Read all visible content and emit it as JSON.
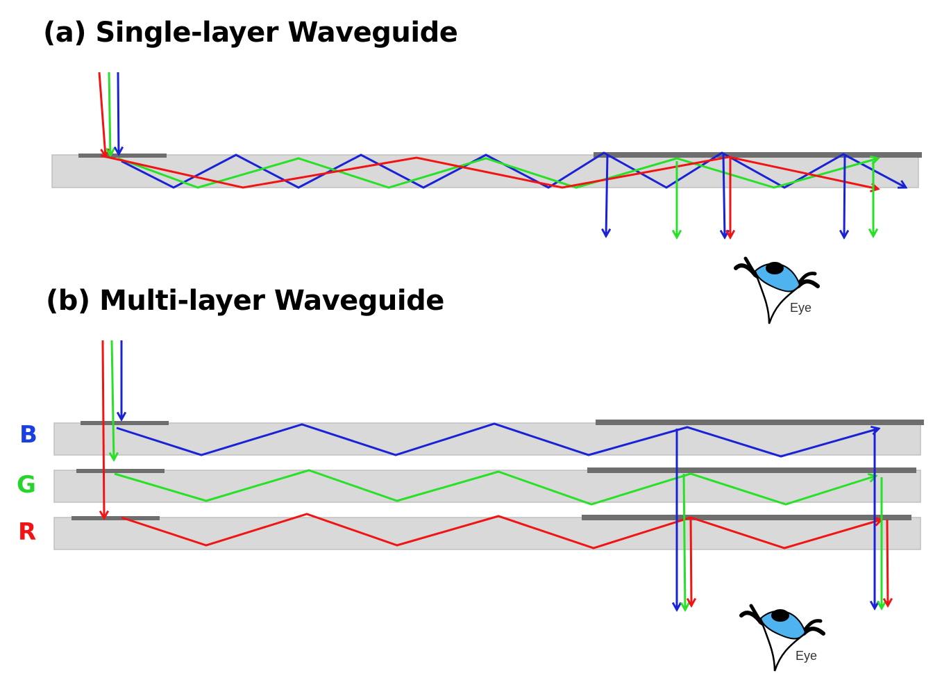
{
  "panel_a": {
    "title": "(a) Single-layer Waveguide",
    "eye_label": "Eye"
  },
  "panel_b": {
    "title": "(b) Multi-layer Waveguide",
    "eye_label": "Eye",
    "layers": [
      {
        "label": "B",
        "color": "#1a3fe0"
      },
      {
        "label": "G",
        "color": "#27d42b"
      },
      {
        "label": "R",
        "color": "#f01414"
      }
    ]
  },
  "colors": {
    "red": "#f01414",
    "green": "#27e027",
    "blue": "#1a22d6",
    "waveguide_fill": "#d9d9d9",
    "waveguide_edge": "#bfbfbf",
    "grating": "#6e6e6e"
  }
}
